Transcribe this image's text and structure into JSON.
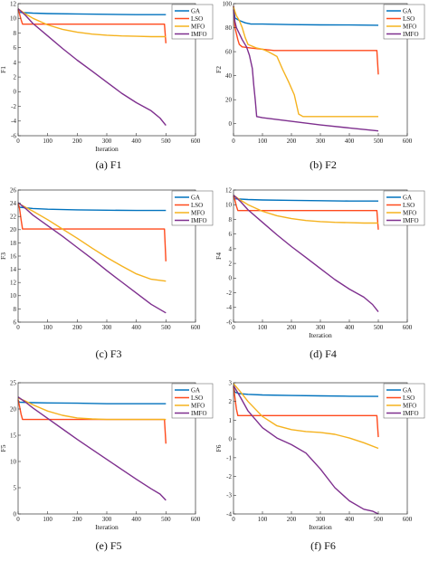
{
  "figure": {
    "colors": {
      "GA": "#0072bd",
      "LSO": "#ff4a1c",
      "MFO": "#f5b21e",
      "IMFO": "#7e2f8e"
    }
  },
  "chart_data": [
    {
      "type": "line",
      "id": "F1",
      "caption": "(a) F1",
      "xlabel": "Iteration",
      "ylabel": "F1",
      "xlim": [
        0,
        600
      ],
      "ylim": [
        -6,
        12
      ],
      "xticks": [
        0,
        100,
        200,
        300,
        400,
        500,
        600
      ],
      "yticks": [
        -6,
        -4,
        -2,
        0,
        2,
        4,
        6,
        8,
        10,
        12
      ],
      "legend": {
        "placement": "top-right",
        "entries": [
          "GA",
          "LSO",
          "MFO",
          "IMFO"
        ]
      },
      "series": [
        {
          "name": "GA",
          "x": [
            0,
            5,
            50,
            100,
            200,
            300,
            400,
            500
          ],
          "y": [
            11.1,
            10.8,
            10.7,
            10.65,
            10.6,
            10.55,
            10.5,
            10.5
          ]
        },
        {
          "name": "LSO",
          "x": [
            0,
            5,
            10,
            15,
            50,
            100,
            200,
            300,
            400,
            495,
            500
          ],
          "y": [
            11.2,
            10.6,
            9.8,
            9.2,
            9.2,
            9.2,
            9.2,
            9.2,
            9.2,
            9.2,
            6.6
          ]
        },
        {
          "name": "MFO",
          "x": [
            0,
            25,
            50,
            100,
            150,
            200,
            250,
            300,
            350,
            400,
            450,
            500
          ],
          "y": [
            11.3,
            10.6,
            10.0,
            9.1,
            8.5,
            8.1,
            7.85,
            7.7,
            7.6,
            7.55,
            7.5,
            7.5
          ]
        },
        {
          "name": "IMFO",
          "x": [
            0,
            25,
            50,
            100,
            150,
            200,
            250,
            300,
            350,
            400,
            450,
            480,
            500
          ],
          "y": [
            11.3,
            10.4,
            9.3,
            7.6,
            5.9,
            4.3,
            2.8,
            1.3,
            -0.2,
            -1.5,
            -2.6,
            -3.6,
            -4.6
          ]
        }
      ]
    },
    {
      "type": "line",
      "id": "F2",
      "caption": "(b) F2",
      "xlabel": "",
      "ylabel": "F2",
      "xlim": [
        0,
        600
      ],
      "ylim": [
        -10,
        100
      ],
      "xticks": [
        0,
        100,
        200,
        300,
        400,
        500,
        600
      ],
      "yticks": [
        0,
        20,
        40,
        60,
        80,
        100
      ],
      "legend": {
        "placement": "top-right",
        "entries": [
          "GA",
          "LSO",
          "MFO",
          "IMFO"
        ]
      },
      "series": [
        {
          "name": "GA",
          "x": [
            0,
            5,
            20,
            40,
            60,
            100,
            200,
            300,
            400,
            500
          ],
          "y": [
            98,
            88,
            86,
            84,
            83,
            83,
            82.5,
            82.3,
            82.2,
            82
          ]
        },
        {
          "name": "LSO",
          "x": [
            0,
            5,
            15,
            20,
            30,
            60,
            100,
            140,
            200,
            300,
            400,
            495,
            500
          ],
          "y": [
            98,
            80,
            70,
            66,
            64,
            63,
            62,
            61,
            61,
            61,
            61,
            61,
            41
          ]
        },
        {
          "name": "MFO",
          "x": [
            0,
            10,
            20,
            30,
            40,
            50,
            80,
            100,
            120,
            150,
            170,
            190,
            210,
            225,
            240,
            300,
            400,
            500
          ],
          "y": [
            97,
            90,
            86,
            80,
            72,
            66,
            63,
            62,
            60,
            56,
            45,
            35,
            24,
            8,
            6,
            6,
            6,
            6
          ]
        },
        {
          "name": "IMFO",
          "x": [
            0,
            5,
            10,
            20,
            30,
            45,
            55,
            65,
            70,
            75,
            80,
            100,
            200,
            300,
            400,
            500
          ],
          "y": [
            95,
            85,
            80,
            75,
            70,
            64,
            57,
            46,
            32,
            20,
            6,
            5,
            2,
            -1,
            -3.5,
            -6
          ]
        }
      ]
    },
    {
      "type": "line",
      "id": "F3",
      "caption": "(c) F3",
      "xlabel": "",
      "ylabel": "F3",
      "xlim": [
        0,
        600
      ],
      "ylim": [
        6,
        26
      ],
      "xticks": [
        0,
        100,
        200,
        300,
        400,
        500,
        600
      ],
      "yticks": [
        6,
        8,
        10,
        12,
        14,
        16,
        18,
        20,
        22,
        24,
        26
      ],
      "legend": {
        "placement": "top-right",
        "entries": [
          "GA",
          "LSO",
          "MFO",
          "IMFO"
        ]
      },
      "series": [
        {
          "name": "GA",
          "x": [
            0,
            5,
            50,
            100,
            200,
            300,
            400,
            500
          ],
          "y": [
            23.8,
            23.4,
            23.2,
            23.1,
            23.0,
            22.95,
            22.9,
            22.9
          ]
        },
        {
          "name": "LSO",
          "x": [
            0,
            5,
            10,
            15,
            50,
            100,
            200,
            300,
            400,
            495,
            500
          ],
          "y": [
            23.9,
            23.2,
            21.5,
            20.1,
            20.1,
            20.1,
            20.1,
            20.1,
            20.1,
            20.1,
            15.2
          ]
        },
        {
          "name": "MFO",
          "x": [
            0,
            25,
            50,
            100,
            150,
            200,
            250,
            300,
            350,
            400,
            450,
            500
          ],
          "y": [
            24.0,
            23.4,
            22.8,
            21.5,
            20.1,
            18.7,
            17.2,
            15.8,
            14.5,
            13.3,
            12.5,
            12.2
          ]
        },
        {
          "name": "IMFO",
          "x": [
            0,
            25,
            50,
            100,
            150,
            200,
            250,
            300,
            350,
            400,
            450,
            500
          ],
          "y": [
            24.1,
            23.2,
            22.2,
            20.6,
            19.0,
            17.3,
            15.6,
            13.8,
            12.1,
            10.4,
            8.7,
            7.4
          ]
        }
      ]
    },
    {
      "type": "line",
      "id": "F4",
      "caption": "(d) F4",
      "xlabel": "Iteration",
      "ylabel": "F4",
      "xlim": [
        0,
        600
      ],
      "ylim": [
        -6,
        12
      ],
      "xticks": [
        0,
        100,
        200,
        300,
        400,
        500,
        600
      ],
      "yticks": [
        -6,
        -4,
        -2,
        0,
        2,
        4,
        6,
        8,
        10,
        12
      ],
      "legend": {
        "placement": "top-right",
        "entries": [
          "GA",
          "LSO",
          "MFO",
          "IMFO"
        ]
      },
      "series": [
        {
          "name": "GA",
          "x": [
            0,
            5,
            50,
            100,
            200,
            300,
            400,
            500
          ],
          "y": [
            11.1,
            10.8,
            10.7,
            10.65,
            10.6,
            10.55,
            10.5,
            10.5
          ]
        },
        {
          "name": "LSO",
          "x": [
            0,
            5,
            10,
            15,
            50,
            100,
            200,
            300,
            400,
            495,
            500
          ],
          "y": [
            11.2,
            10.6,
            9.8,
            9.2,
            9.2,
            9.2,
            9.2,
            9.2,
            9.2,
            9.2,
            6.6
          ]
        },
        {
          "name": "MFO",
          "x": [
            0,
            25,
            50,
            100,
            150,
            200,
            250,
            300,
            350,
            400,
            450,
            500
          ],
          "y": [
            11.3,
            10.6,
            10.0,
            9.1,
            8.5,
            8.1,
            7.85,
            7.7,
            7.6,
            7.55,
            7.5,
            7.5
          ]
        },
        {
          "name": "IMFO",
          "x": [
            0,
            25,
            50,
            100,
            150,
            200,
            250,
            300,
            350,
            400,
            450,
            480,
            500
          ],
          "y": [
            11.3,
            10.4,
            9.3,
            7.6,
            5.9,
            4.3,
            2.8,
            1.3,
            -0.2,
            -1.5,
            -2.6,
            -3.6,
            -4.6
          ]
        }
      ]
    },
    {
      "type": "line",
      "id": "F5",
      "caption": "(e) F5",
      "xlabel": "Iteration",
      "ylabel": "F5",
      "xlim": [
        0,
        600
      ],
      "ylim": [
        0,
        25
      ],
      "xticks": [
        0,
        100,
        200,
        300,
        400,
        500,
        600
      ],
      "yticks": [
        0,
        5,
        10,
        15,
        20,
        25
      ],
      "legend": {
        "placement": "top-right",
        "entries": [
          "GA",
          "LSO",
          "MFO",
          "IMFO"
        ]
      },
      "series": [
        {
          "name": "GA",
          "x": [
            0,
            5,
            50,
            100,
            200,
            300,
            400,
            500
          ],
          "y": [
            21.6,
            21.3,
            21.2,
            21.15,
            21.1,
            21.0,
            21.0,
            21.0
          ]
        },
        {
          "name": "LSO",
          "x": [
            0,
            5,
            10,
            15,
            50,
            100,
            200,
            300,
            400,
            495,
            500
          ],
          "y": [
            21.8,
            20.5,
            19.0,
            18.0,
            18.0,
            18.0,
            18.0,
            18.0,
            18.0,
            18.0,
            13.4
          ]
        },
        {
          "name": "MFO",
          "x": [
            0,
            25,
            50,
            100,
            150,
            200,
            250,
            300,
            400,
            500
          ],
          "y": [
            22.1,
            21.5,
            20.8,
            19.6,
            18.8,
            18.3,
            18.1,
            18.0,
            18.0,
            18.0
          ]
        },
        {
          "name": "IMFO",
          "x": [
            0,
            25,
            50,
            100,
            150,
            200,
            250,
            300,
            350,
            400,
            450,
            480,
            500
          ],
          "y": [
            22.3,
            21.3,
            20.2,
            18.2,
            16.2,
            14.2,
            12.3,
            10.4,
            8.5,
            6.6,
            4.8,
            3.8,
            2.6
          ]
        }
      ]
    },
    {
      "type": "line",
      "id": "F6",
      "caption": "(f) F6",
      "xlabel": "Iteration",
      "ylabel": "F6",
      "xlim": [
        0,
        600
      ],
      "ylim": [
        -4,
        3
      ],
      "xticks": [
        0,
        100,
        200,
        300,
        400,
        500,
        600
      ],
      "yticks": [
        -4,
        -3,
        -2,
        -1,
        0,
        1,
        2,
        3
      ],
      "legend": {
        "placement": "top-right",
        "entries": [
          "GA",
          "LSO",
          "MFO",
          "IMFO"
        ]
      },
      "series": [
        {
          "name": "GA",
          "x": [
            0,
            5,
            20,
            50,
            100,
            200,
            300,
            400,
            500
          ],
          "y": [
            2.75,
            2.5,
            2.42,
            2.38,
            2.35,
            2.32,
            2.3,
            2.28,
            2.27
          ]
        },
        {
          "name": "LSO",
          "x": [
            0,
            5,
            10,
            15,
            50,
            100,
            200,
            300,
            400,
            495,
            500
          ],
          "y": [
            2.8,
            2.2,
            1.6,
            1.25,
            1.25,
            1.25,
            1.25,
            1.25,
            1.25,
            1.25,
            0.1
          ]
        },
        {
          "name": "MFO",
          "x": [
            0,
            25,
            50,
            100,
            150,
            200,
            250,
            300,
            350,
            400,
            450,
            500
          ],
          "y": [
            2.95,
            2.5,
            2.0,
            1.2,
            0.7,
            0.5,
            0.4,
            0.35,
            0.25,
            0.05,
            -0.2,
            -0.5
          ]
        },
        {
          "name": "IMFO",
          "x": [
            0,
            25,
            50,
            100,
            150,
            200,
            250,
            300,
            350,
            400,
            450,
            480,
            500
          ],
          "y": [
            2.85,
            2.2,
            1.5,
            0.6,
            0.05,
            -0.3,
            -0.75,
            -1.6,
            -2.6,
            -3.3,
            -3.75,
            -3.85,
            -4.0
          ]
        }
      ]
    }
  ]
}
